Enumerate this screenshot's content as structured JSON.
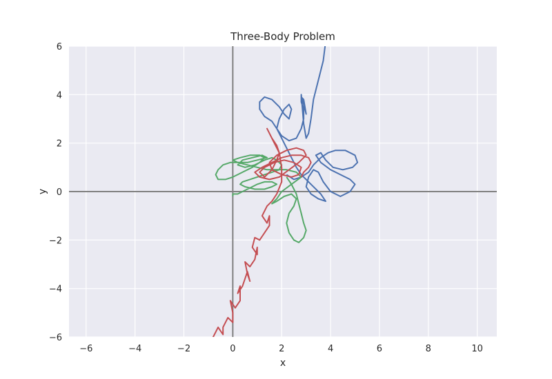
{
  "chart_data": {
    "type": "line",
    "title": "Three-Body Problem",
    "xlabel": "x",
    "ylabel": "y",
    "xlim": [
      -6.7,
      10.8
    ],
    "ylim": [
      -6,
      6
    ],
    "xticks": [
      -6,
      -4,
      -2,
      0,
      2,
      4,
      6,
      8,
      10
    ],
    "yticks": [
      -6,
      -4,
      -2,
      0,
      2,
      4,
      6
    ],
    "xtick_labels": [
      "−6",
      "−4",
      "−2",
      "0",
      "2",
      "4",
      "6",
      "8",
      "10"
    ],
    "ytick_labels": [
      "−6",
      "−4",
      "−2",
      "0",
      "2",
      "4",
      "6"
    ],
    "grid": true,
    "zero_lines": true,
    "colors": {
      "background": "#eaeaf2",
      "grid": "#ffffff",
      "zero_line": "#808080",
      "body_1": "#4c72b0",
      "body_2": "#55a868",
      "body_3": "#c44e52"
    },
    "series": [
      {
        "color": "#4c72b0",
        "x": [
          2.2,
          2.5,
          2.8,
          3.1,
          3.3,
          3.6,
          3.9,
          4.2,
          4.6,
          5.0,
          5.1,
          4.9,
          4.5,
          4.1,
          3.8,
          3.6,
          3.4,
          3.6,
          4.0,
          4.4,
          4.8,
          5.0,
          4.8,
          4.4,
          4.0,
          3.7,
          3.5,
          3.3,
          3.1,
          3.0,
          3.2,
          3.5,
          3.8,
          3.6,
          3.2,
          2.8,
          2.6,
          2.4,
          2.2,
          2.0,
          1.8,
          1.6,
          1.3,
          1.1,
          1.1,
          1.3,
          1.6,
          1.9,
          2.1,
          2.3,
          2.4,
          2.3,
          2.1,
          1.9,
          1.8,
          2.0,
          2.3,
          2.6,
          2.8,
          2.9,
          2.9,
          2.8,
          2.8,
          2.9,
          3.0,
          2.9,
          2.8,
          2.8,
          2.9,
          3.0,
          3.1,
          3.2,
          3.3,
          3.5,
          3.7,
          3.8
        ],
        "y": [
          0.7,
          0.5,
          0.6,
          0.8,
          1.1,
          1.4,
          1.6,
          1.7,
          1.7,
          1.5,
          1.2,
          1.0,
          0.9,
          1.0,
          1.3,
          1.6,
          1.5,
          1.2,
          0.9,
          0.7,
          0.5,
          0.3,
          0.0,
          -0.2,
          0.0,
          0.4,
          0.8,
          0.9,
          0.6,
          0.2,
          -0.1,
          -0.3,
          -0.4,
          -0.1,
          0.3,
          0.7,
          1.0,
          1.4,
          1.8,
          2.2,
          2.6,
          2.9,
          3.1,
          3.4,
          3.7,
          3.9,
          3.8,
          3.5,
          3.2,
          3.0,
          3.4,
          3.6,
          3.4,
          3.0,
          2.6,
          2.3,
          2.1,
          2.2,
          2.6,
          3.0,
          3.4,
          3.7,
          3.9,
          3.6,
          3.2,
          3.8,
          3.9,
          4.0,
          2.8,
          2.2,
          2.4,
          3.0,
          3.8,
          4.6,
          5.4,
          6.2
        ]
      },
      {
        "color": "#55a868",
        "x": [
          2.2,
          2.4,
          2.6,
          2.7,
          2.8,
          2.9,
          3.0,
          2.9,
          2.7,
          2.5,
          2.3,
          2.2,
          2.3,
          2.5,
          2.6,
          2.4,
          2.1,
          1.8,
          1.6,
          1.8,
          2.0,
          2.4,
          2.8,
          2.6,
          2.2,
          1.8,
          1.4,
          1.0,
          0.6,
          0.2,
          -0.1,
          -0.4,
          -0.6,
          -0.7,
          -0.6,
          -0.3,
          0.0,
          0.4,
          0.8,
          1.1,
          1.3,
          1.1,
          0.7,
          0.3,
          0.0,
          0.2,
          0.6,
          1.0,
          1.4,
          1.2,
          0.8,
          0.4,
          0.2,
          0.5,
          0.9,
          1.3,
          1.6,
          1.8,
          2.0,
          1.9,
          1.6,
          1.3,
          1.0,
          0.7,
          0.4,
          0.3,
          0.5,
          0.9,
          1.3,
          1.6,
          1.8,
          1.6,
          1.3,
          1.0,
          0.8,
          0.6,
          0.4,
          0.2,
          0.0,
          0.0
        ],
        "y": [
          0.6,
          0.3,
          -0.1,
          -0.5,
          -0.9,
          -1.3,
          -1.6,
          -1.9,
          -2.1,
          -2.0,
          -1.7,
          -1.3,
          -0.9,
          -0.6,
          -0.3,
          -0.1,
          -0.2,
          -0.4,
          -0.5,
          -0.3,
          0.0,
          0.3,
          0.6,
          0.8,
          0.9,
          0.9,
          0.9,
          1.0,
          1.1,
          1.2,
          1.2,
          1.1,
          0.9,
          0.7,
          0.5,
          0.5,
          0.6,
          0.8,
          1.0,
          1.2,
          1.4,
          1.5,
          1.5,
          1.4,
          1.3,
          1.2,
          1.2,
          1.3,
          1.4,
          1.5,
          1.4,
          1.3,
          1.1,
          1.0,
          1.1,
          1.3,
          1.4,
          1.3,
          1.1,
          0.9,
          0.8,
          0.7,
          0.6,
          0.5,
          0.4,
          0.3,
          0.2,
          0.1,
          0.1,
          0.2,
          0.3,
          0.4,
          0.4,
          0.3,
          0.2,
          0.1,
          0.0,
          -0.1,
          -0.1,
          -0.2
        ]
      },
      {
        "color": "#c44e52",
        "x": [
          2.8,
          2.9,
          3.1,
          3.2,
          3.1,
          2.8,
          2.4,
          2.0,
          1.6,
          1.2,
          0.9,
          1.1,
          1.5,
          1.9,
          2.3,
          2.7,
          3.0,
          2.9,
          2.6,
          2.2,
          1.8,
          1.5,
          1.6,
          2.0,
          2.4,
          2.7,
          2.8,
          2.5,
          2.1,
          1.7,
          1.3,
          1.1,
          1.3,
          1.6,
          1.8,
          1.9,
          1.8,
          1.6,
          1.4,
          1.5,
          1.7,
          1.9,
          2.0,
          2.0,
          1.8,
          1.6,
          1.4,
          1.2,
          1.4,
          1.5,
          1.5,
          1.3,
          1.1,
          0.9,
          0.8,
          1.0,
          1.0,
          0.9,
          0.7,
          0.5,
          0.6,
          0.7,
          0.6,
          0.4,
          0.2,
          0.3,
          0.3,
          0.1,
          -0.1,
          0.0,
          0.0,
          -0.2,
          -0.4,
          -0.4,
          -0.6,
          -0.8,
          -0.9,
          -0.9
        ]
      }
    ],
    "series_y": [
      [
        0.6,
        0.8,
        1.0,
        1.2,
        1.4,
        1.5,
        1.5,
        1.4,
        1.2,
        1.0,
        0.8,
        0.6,
        0.5,
        0.6,
        0.9,
        1.2,
        1.5,
        1.7,
        1.8,
        1.7,
        1.5,
        1.2,
        0.9,
        0.7,
        0.6,
        0.7,
        1.0,
        1.2,
        1.3,
        1.2,
        1.0,
        0.8,
        0.6,
        0.9,
        1.3,
        1.6,
        1.9,
        2.2,
        2.6,
        2.4,
        2.0,
        1.6,
        1.0,
        0.4,
        -0.1,
        -0.4,
        -0.6,
        -1.0,
        -1.3,
        -1.0,
        -1.4,
        -1.7,
        -2.0,
        -1.9,
        -2.3,
        -2.6,
        -2.3,
        -2.8,
        -3.1,
        -2.9,
        -3.4,
        -3.7,
        -3.3,
        -3.9,
        -4.2,
        -3.9,
        -4.5,
        -4.8,
        -4.5,
        -5.0,
        -5.4,
        -5.2,
        -5.6,
        -5.9,
        -5.6,
        -6.0,
        -6.2,
        -6.2
      ]
    ]
  }
}
